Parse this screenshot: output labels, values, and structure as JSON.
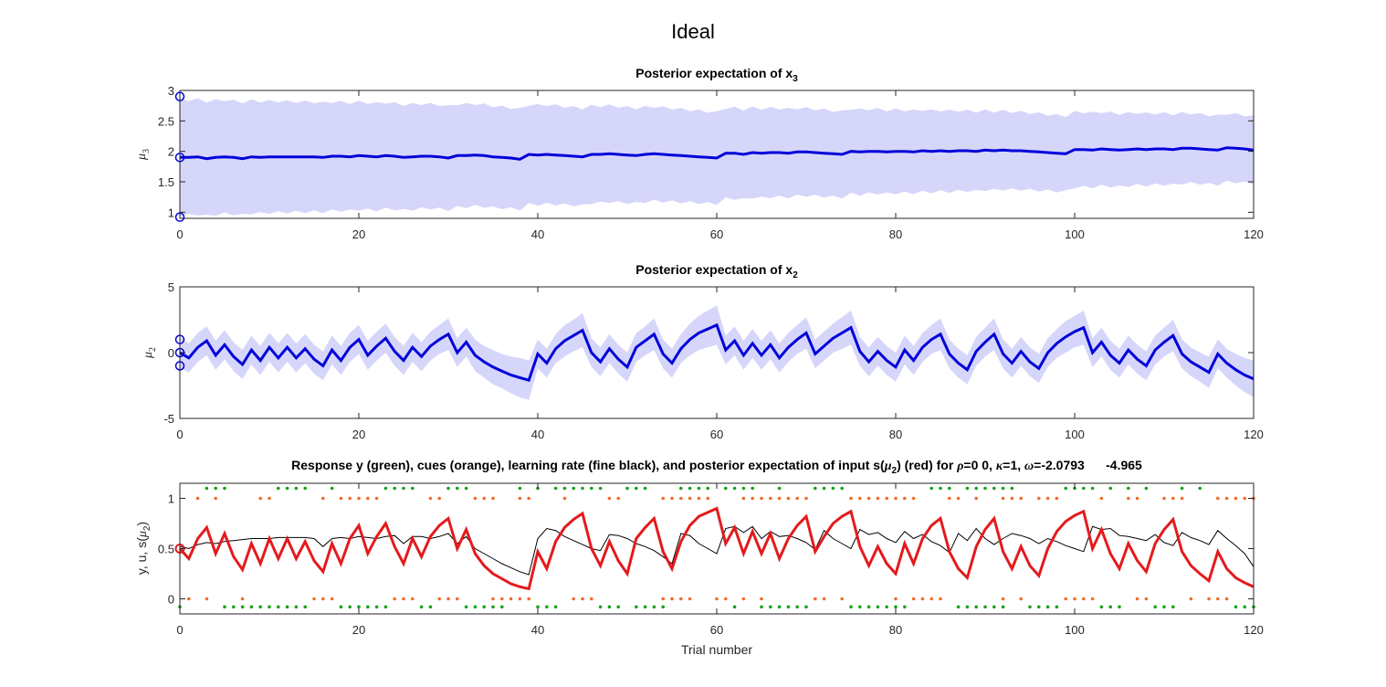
{
  "figure_title": "Ideal",
  "chart_data": [
    {
      "type": "line",
      "title_main": "Posterior expectation of x",
      "title_sub": "3",
      "ylabel_sym": "μ",
      "ylabel_sub": "3",
      "xlim": [
        0,
        120
      ],
      "ylim": [
        0.9,
        3.0
      ],
      "xticks": [
        0,
        20,
        40,
        60,
        80,
        100,
        120
      ],
      "yticks": [
        1,
        1.5,
        2,
        2.5,
        3
      ],
      "ytick_labels": [
        "1",
        "1.5",
        "2",
        "2.5",
        "3"
      ],
      "colors": {
        "line": "#0000d9",
        "band": "#d6d6fb"
      },
      "band_halfwidth_start": 0.95,
      "band_halfwidth_end": 0.55,
      "initial_markers": [
        2.9,
        1.9,
        0.92
      ],
      "y": [
        1.9,
        1.9,
        1.91,
        1.88,
        1.9,
        1.91,
        1.9,
        1.88,
        1.91,
        1.9,
        1.91,
        1.91,
        1.91,
        1.91,
        1.91,
        1.91,
        1.9,
        1.92,
        1.92,
        1.91,
        1.93,
        1.92,
        1.91,
        1.93,
        1.92,
        1.9,
        1.91,
        1.92,
        1.92,
        1.91,
        1.89,
        1.93,
        1.93,
        1.94,
        1.93,
        1.91,
        1.9,
        1.89,
        1.87,
        1.95,
        1.94,
        1.95,
        1.94,
        1.93,
        1.92,
        1.91,
        1.95,
        1.95,
        1.96,
        1.95,
        1.94,
        1.93,
        1.95,
        1.96,
        1.95,
        1.94,
        1.93,
        1.92,
        1.91,
        1.9,
        1.89,
        1.97,
        1.97,
        1.95,
        1.98,
        1.97,
        1.98,
        1.98,
        1.97,
        1.99,
        1.99,
        1.98,
        1.97,
        1.96,
        1.95,
        2.0,
        1.99,
        2.0,
        2.0,
        1.99,
        2.0,
        2.0,
        1.99,
        2.01,
        2.0,
        2.01,
        2.0,
        2.01,
        2.01,
        2.0,
        2.02,
        2.01,
        2.02,
        2.01,
        2.01,
        2.0,
        1.99,
        1.98,
        1.97,
        1.96,
        2.03,
        2.03,
        2.02,
        2.04,
        2.03,
        2.02,
        2.03,
        2.04,
        2.03,
        2.04,
        2.04,
        2.03,
        2.05,
        2.05,
        2.04,
        2.03,
        2.02,
        2.06,
        2.05,
        2.04,
        2.02
      ]
    },
    {
      "type": "line",
      "title_main": "Posterior expectation of x",
      "title_sub": "2",
      "ylabel_sym": "μ",
      "ylabel_sub": "2",
      "xlim": [
        0,
        120
      ],
      "ylim": [
        -5,
        5
      ],
      "xticks": [
        0,
        20,
        40,
        60,
        80,
        100,
        120
      ],
      "yticks": [
        -5,
        0,
        5
      ],
      "ytick_labels": [
        "-5",
        "0",
        "5"
      ],
      "colors": {
        "line": "#0000d9",
        "band": "#d6d6fb"
      },
      "initial_markers": [
        1.0,
        0.0,
        -1.0
      ],
      "y": [
        0,
        -0.4,
        0.4,
        0.9,
        -0.2,
        0.6,
        -0.3,
        -0.9,
        0.2,
        -0.6,
        0.4,
        -0.4,
        0.4,
        -0.4,
        0.3,
        -0.5,
        -1.0,
        0.2,
        -0.6,
        0.4,
        1.0,
        -0.2,
        0.5,
        1.1,
        0.1,
        -0.6,
        0.4,
        -0.3,
        0.5,
        1.0,
        1.4,
        0.0,
        0.8,
        -0.2,
        -0.7,
        -1.1,
        -1.4,
        -1.7,
        -1.9,
        -2.1,
        -0.1,
        -0.8,
        0.3,
        0.9,
        1.3,
        1.7,
        0.0,
        -0.7,
        0.3,
        -0.5,
        -1.1,
        0.4,
        0.9,
        1.4,
        -0.1,
        -0.8,
        0.3,
        1.0,
        1.5,
        1.8,
        2.1,
        0.2,
        0.9,
        -0.2,
        0.7,
        -0.2,
        0.6,
        -0.4,
        0.4,
        1.0,
        1.5,
        -0.1,
        0.5,
        1.1,
        1.5,
        1.9,
        0.1,
        -0.7,
        0.1,
        -0.6,
        -1.1,
        0.2,
        -0.6,
        0.4,
        1.0,
        1.4,
        -0.1,
        -0.8,
        -1.3,
        0.1,
        0.8,
        1.4,
        -0.1,
        -0.8,
        0.1,
        -0.7,
        -1.2,
        0.0,
        0.7,
        1.2,
        1.6,
        1.9,
        0.0,
        0.8,
        -0.2,
        -0.8,
        0.2,
        -0.5,
        -1.0,
        0.2,
        0.8,
        1.3,
        -0.1,
        -0.7,
        -1.1,
        -1.5,
        -0.1,
        -0.8,
        -1.3,
        -1.7,
        -2.0
      ],
      "upper_offset": [
        1.2,
        1.1,
        1.1,
        1.1,
        1.1,
        1.1,
        1.1,
        1.1,
        1.1,
        1.1,
        1.1,
        1.1,
        1.1,
        1.1,
        1.1,
        1.1,
        1.1,
        1.1,
        1.1,
        1.1,
        1.1,
        1.1,
        1.1,
        1.1,
        1.1,
        1.1,
        1.1,
        1.1,
        1.1,
        1.1,
        1.2,
        1.1,
        1.1,
        1.2,
        1.2,
        1.3,
        1.3,
        1.4,
        1.5,
        1.5,
        1.1,
        1.1,
        1.1,
        1.2,
        1.2,
        1.3,
        1.1,
        1.1,
        1.1,
        1.1,
        1.1,
        1.1,
        1.1,
        1.2,
        1.1,
        1.1,
        1.1,
        1.2,
        1.3,
        1.4,
        1.5,
        1.1,
        1.1,
        1.1,
        1.1,
        1.1,
        1.1,
        1.1,
        1.1,
        1.1,
        1.2,
        1.1,
        1.1,
        1.1,
        1.2,
        1.3,
        1.1,
        1.1,
        1.1,
        1.1,
        1.1,
        1.1,
        1.1,
        1.1,
        1.1,
        1.2,
        1.1,
        1.1,
        1.1,
        1.1,
        1.1,
        1.2,
        1.1,
        1.1,
        1.1,
        1.1,
        1.1,
        1.1,
        1.1,
        1.2,
        1.2,
        1.3,
        1.1,
        1.1,
        1.1,
        1.1,
        1.1,
        1.1,
        1.1,
        1.1,
        1.1,
        1.2,
        1.1,
        1.1,
        1.1,
        1.2,
        1.1,
        1.1,
        1.2,
        1.3,
        1.4
      ],
      "lower_offset": [
        1.2,
        1.1,
        1.1,
        1.1,
        1.1,
        1.1,
        1.1,
        1.1,
        1.1,
        1.1,
        1.1,
        1.1,
        1.1,
        1.1,
        1.1,
        1.1,
        1.1,
        1.1,
        1.1,
        1.1,
        1.1,
        1.1,
        1.1,
        1.1,
        1.1,
        1.1,
        1.1,
        1.1,
        1.1,
        1.1,
        1.2,
        1.1,
        1.1,
        1.2,
        1.2,
        1.3,
        1.3,
        1.4,
        1.5,
        1.5,
        1.1,
        1.1,
        1.1,
        1.2,
        1.2,
        1.3,
        1.1,
        1.1,
        1.1,
        1.1,
        1.1,
        1.1,
        1.1,
        1.2,
        1.1,
        1.1,
        1.1,
        1.2,
        1.3,
        1.4,
        1.5,
        1.1,
        1.1,
        1.1,
        1.1,
        1.1,
        1.1,
        1.1,
        1.1,
        1.1,
        1.2,
        1.1,
        1.1,
        1.1,
        1.2,
        1.3,
        1.1,
        1.1,
        1.1,
        1.1,
        1.1,
        1.1,
        1.1,
        1.1,
        1.1,
        1.2,
        1.1,
        1.1,
        1.1,
        1.1,
        1.1,
        1.2,
        1.1,
        1.1,
        1.1,
        1.1,
        1.1,
        1.1,
        1.1,
        1.2,
        1.2,
        1.3,
        1.1,
        1.1,
        1.1,
        1.1,
        1.1,
        1.1,
        1.1,
        1.1,
        1.1,
        1.2,
        1.1,
        1.1,
        1.1,
        1.2,
        1.1,
        1.1,
        1.2,
        1.3,
        1.4
      ]
    },
    {
      "type": "line",
      "title_text": "Response y (green), cues (orange), learning rate (fine black), and posterior expectation of input s(",
      "title_sym": "μ",
      "title_sub": "2",
      "title_text2": ") (red) for ",
      "title_rho": "ρ",
      "title_text3": "=0  0, ",
      "title_kappa": "κ",
      "title_text4": "=1, ",
      "title_omega": "ω",
      "title_text5": "=-2.0793      -4.965",
      "ylabel_text": "y, u, s(",
      "ylabel_sym": "μ",
      "ylabel_sub": "2",
      "ylabel_close": ")",
      "xlabel": "Trial number",
      "xlim": [
        0,
        120
      ],
      "ylim": [
        -0.15,
        1.15
      ],
      "xticks": [
        0,
        20,
        40,
        60,
        80,
        100,
        120
      ],
      "yticks": [
        0,
        0.5,
        1
      ],
      "ytick_labels": [
        "0",
        "0.5",
        "1"
      ],
      "colors": {
        "prediction": "#e41a1c",
        "learning_rate": "#000000",
        "response": "#17a317",
        "cue": "#f26b2a"
      },
      "prediction": [
        0.5,
        0.4,
        0.6,
        0.71,
        0.45,
        0.65,
        0.42,
        0.29,
        0.55,
        0.35,
        0.6,
        0.4,
        0.6,
        0.4,
        0.57,
        0.38,
        0.27,
        0.55,
        0.35,
        0.6,
        0.73,
        0.45,
        0.62,
        0.75,
        0.52,
        0.35,
        0.6,
        0.42,
        0.62,
        0.73,
        0.8,
        0.5,
        0.69,
        0.45,
        0.33,
        0.25,
        0.2,
        0.15,
        0.12,
        0.1,
        0.47,
        0.3,
        0.57,
        0.71,
        0.79,
        0.85,
        0.5,
        0.33,
        0.57,
        0.38,
        0.25,
        0.6,
        0.71,
        0.8,
        0.47,
        0.3,
        0.57,
        0.73,
        0.82,
        0.86,
        0.9,
        0.55,
        0.71,
        0.45,
        0.67,
        0.45,
        0.65,
        0.4,
        0.6,
        0.73,
        0.82,
        0.47,
        0.62,
        0.75,
        0.82,
        0.87,
        0.52,
        0.33,
        0.52,
        0.35,
        0.25,
        0.55,
        0.35,
        0.6,
        0.73,
        0.8,
        0.47,
        0.3,
        0.21,
        0.52,
        0.69,
        0.8,
        0.47,
        0.3,
        0.52,
        0.33,
        0.23,
        0.5,
        0.67,
        0.77,
        0.83,
        0.87,
        0.5,
        0.69,
        0.45,
        0.3,
        0.55,
        0.38,
        0.27,
        0.55,
        0.69,
        0.79,
        0.47,
        0.33,
        0.25,
        0.18,
        0.47,
        0.3,
        0.21,
        0.16,
        0.12
      ],
      "learning_rate": [
        0.52,
        0.5,
        0.54,
        0.56,
        0.55,
        0.57,
        0.58,
        0.59,
        0.6,
        0.6,
        0.6,
        0.61,
        0.61,
        0.61,
        0.61,
        0.6,
        0.52,
        0.6,
        0.61,
        0.6,
        0.62,
        0.61,
        0.6,
        0.62,
        0.63,
        0.55,
        0.62,
        0.62,
        0.6,
        0.62,
        0.65,
        0.55,
        0.62,
        0.5,
        0.45,
        0.4,
        0.35,
        0.31,
        0.27,
        0.24,
        0.6,
        0.7,
        0.68,
        0.62,
        0.58,
        0.54,
        0.5,
        0.48,
        0.64,
        0.63,
        0.6,
        0.55,
        0.52,
        0.48,
        0.42,
        0.35,
        0.65,
        0.63,
        0.55,
        0.5,
        0.45,
        0.7,
        0.72,
        0.66,
        0.72,
        0.6,
        0.67,
        0.62,
        0.63,
        0.6,
        0.56,
        0.49,
        0.68,
        0.6,
        0.55,
        0.5,
        0.69,
        0.64,
        0.66,
        0.6,
        0.56,
        0.67,
        0.6,
        0.64,
        0.57,
        0.53,
        0.46,
        0.65,
        0.58,
        0.7,
        0.6,
        0.54,
        0.6,
        0.65,
        0.63,
        0.6,
        0.55,
        0.6,
        0.57,
        0.53,
        0.5,
        0.47,
        0.72,
        0.69,
        0.7,
        0.63,
        0.62,
        0.6,
        0.58,
        0.64,
        0.56,
        0.53,
        0.66,
        0.61,
        0.58,
        0.54,
        0.68,
        0.6,
        0.53,
        0.45,
        0.32
      ],
      "response_top_x": [
        3,
        4,
        5,
        11,
        12,
        13,
        14,
        17,
        23,
        24,
        25,
        26,
        30,
        31,
        32,
        38,
        40,
        42,
        43,
        44,
        45,
        46,
        47,
        50,
        51,
        52,
        56,
        57,
        58,
        59,
        61,
        62,
        63,
        64,
        67,
        71,
        72,
        73,
        74,
        84,
        85,
        86,
        88,
        89,
        90,
        91,
        92,
        93,
        99,
        100,
        101,
        102,
        104,
        106,
        108,
        112,
        114
      ],
      "response_bottom_x": [
        0,
        5,
        6,
        7,
        8,
        9,
        10,
        11,
        12,
        13,
        14,
        18,
        19,
        20,
        21,
        22,
        23,
        27,
        28,
        32,
        33,
        34,
        35,
        36,
        40,
        41,
        42,
        47,
        48,
        49,
        51,
        52,
        53,
        54,
        62,
        65,
        66,
        67,
        68,
        69,
        70,
        75,
        76,
        77,
        78,
        79,
        80,
        81,
        87,
        88,
        89,
        90,
        91,
        92,
        95,
        96,
        97,
        98,
        103,
        104,
        105,
        109,
        110,
        111,
        118,
        119,
        120
      ],
      "cue_top_x": [
        2,
        4,
        9,
        10,
        16,
        18,
        19,
        20,
        21,
        22,
        28,
        29,
        33,
        34,
        35,
        38,
        39,
        43,
        48,
        49,
        54,
        55,
        56,
        57,
        58,
        59,
        63,
        64,
        65,
        66,
        67,
        68,
        69,
        70,
        75,
        76,
        77,
        78,
        79,
        80,
        81,
        82,
        86,
        87,
        89,
        92,
        93,
        94,
        96,
        97,
        98,
        103,
        106,
        107,
        110,
        111,
        112,
        116,
        117,
        118,
        119,
        120
      ],
      "cue_bottom_x": [
        1,
        3,
        7,
        15,
        16,
        17,
        24,
        25,
        26,
        29,
        30,
        31,
        35,
        36,
        37,
        38,
        39,
        44,
        45,
        46,
        54,
        55,
        56,
        57,
        60,
        61,
        63,
        65,
        71,
        72,
        74,
        80,
        82,
        83,
        84,
        85,
        92,
        94,
        99,
        100,
        101,
        102,
        107,
        108,
        113,
        115,
        116,
        117
      ]
    }
  ]
}
